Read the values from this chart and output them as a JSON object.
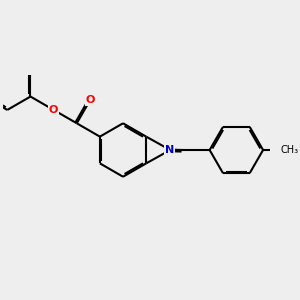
{
  "bg_color": "#eeeeee",
  "bond_color": "#000000",
  "bond_width": 1.5,
  "dbo": 0.06,
  "atom_colors": {
    "O": "#ff0000",
    "N": "#0000cc"
  },
  "fontsize": 9,
  "figsize": [
    3.0,
    3.0
  ],
  "dpi": 100,
  "xlim": [
    -4.5,
    5.5
  ],
  "ylim": [
    -2.8,
    2.8
  ]
}
